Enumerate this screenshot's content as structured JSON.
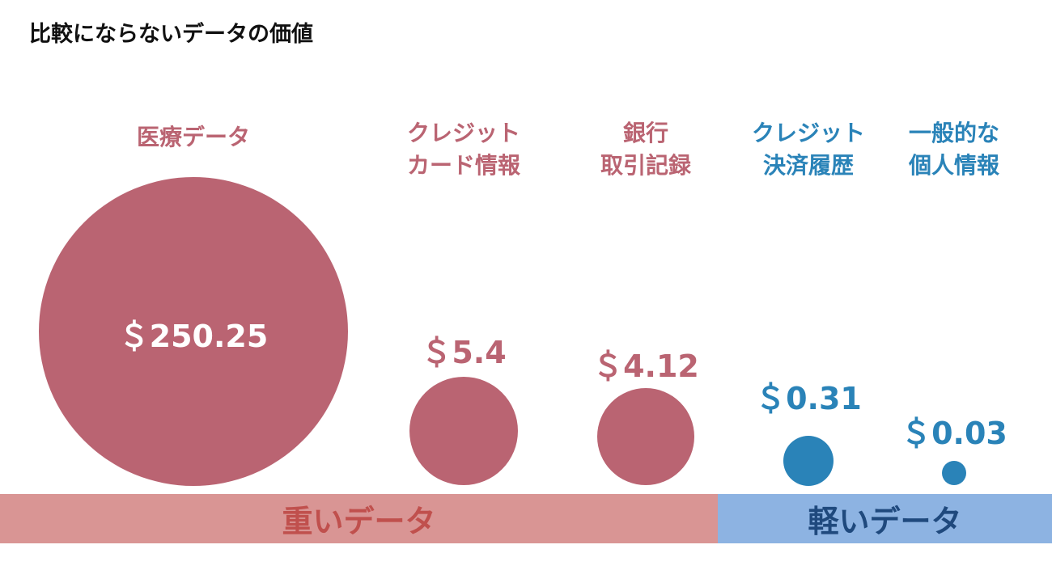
{
  "title": "比較にならないデータの価値",
  "colors": {
    "heavy": "#BA6472",
    "light": "#2A83B8",
    "heavy_band": "#D99594",
    "heavy_band_text": "#C0504D",
    "light_band": "#8DB3E2",
    "light_band_text": "#1F497D"
  },
  "chart_data": {
    "type": "bubble",
    "title": "比較にならないデータの価値",
    "unit": "$",
    "items": [
      {
        "label": "医療データ",
        "value": 250.25,
        "value_label": "＄250.25",
        "group": "heavy"
      },
      {
        "label": "クレジット\nカード情報",
        "value": 5.4,
        "value_label": "＄5.4",
        "group": "heavy"
      },
      {
        "label": "銀行\n取引記録",
        "value": 4.12,
        "value_label": "＄4.12",
        "group": "heavy"
      },
      {
        "label": "クレジット\n決済履歴",
        "value": 0.31,
        "value_label": "＄0.31",
        "group": "light"
      },
      {
        "label": "一般的な\n個人情報",
        "value": 0.03,
        "value_label": "＄0.03",
        "group": "light"
      }
    ],
    "groups": [
      {
        "id": "heavy",
        "label": "重いデータ"
      },
      {
        "id": "light",
        "label": "軽いデータ"
      }
    ]
  }
}
